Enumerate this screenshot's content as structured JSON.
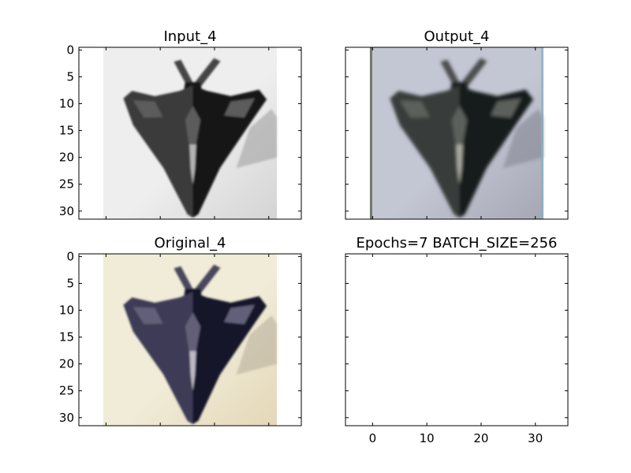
{
  "figure": {
    "background": "#ffffff",
    "panels": [
      {
        "title": "Input_4",
        "kind": "image",
        "colormap": "grayscale",
        "show_y_ticks": true,
        "show_x_ticks": false
      },
      {
        "title": "Output_4",
        "kind": "image",
        "colormap": "desaturated-color-blue-tint",
        "show_y_ticks": false,
        "show_x_ticks": false
      },
      {
        "title": "Original_4",
        "kind": "image",
        "colormap": "color",
        "show_y_ticks": true,
        "show_x_ticks": false
      },
      {
        "title": "Epochs=7 BATCH_SIZE=256",
        "kind": "empty",
        "show_y_ticks": false,
        "show_x_ticks": true
      }
    ]
  },
  "chart_data": [
    {
      "type": "heatmap",
      "title": "Input_4",
      "xlim": [
        -5,
        36
      ],
      "ylim": [
        31.5,
        -0.5
      ],
      "image_extent": [
        -0.5,
        31.5,
        31.5,
        -0.5
      ],
      "y_ticks": [
        "0",
        "5",
        "10",
        "15",
        "20",
        "25",
        "30"
      ],
      "x_ticks": [],
      "content": "32x32 grayscale image of a dark stealth aircraft (arrowhead shape) on a light background"
    },
    {
      "type": "heatmap",
      "title": "Output_4",
      "xlim": [
        -5,
        36
      ],
      "ylim": [
        31.5,
        -0.5
      ],
      "image_extent": [
        -0.5,
        31.5,
        31.5,
        -0.5
      ],
      "y_ticks": [],
      "x_ticks": [],
      "content": "32x32 reconstructed color image of the stealth aircraft, blurry with bluish-gray background"
    },
    {
      "type": "heatmap",
      "title": "Original_4",
      "xlim": [
        -5,
        36
      ],
      "ylim": [
        31.5,
        -0.5
      ],
      "image_extent": [
        -0.5,
        31.5,
        31.5,
        -0.5
      ],
      "y_ticks": [
        "0",
        "5",
        "10",
        "15",
        "20",
        "25",
        "30"
      ],
      "x_ticks": [],
      "content": "32x32 original color image of a dark navy stealth aircraft on a cream background"
    },
    {
      "type": "heatmap",
      "title": "Epochs=7 BATCH_SIZE=256",
      "xlim": [
        -5,
        36
      ],
      "ylim": [
        31.5,
        -0.5
      ],
      "y_ticks": [],
      "x_ticks": [
        "0",
        "10",
        "20",
        "30"
      ],
      "content": "empty axes"
    }
  ],
  "palettes": {
    "gray": {
      "bg_light": "#eeeeee",
      "bg_mid": "#d4d4d4",
      "body": "#3a3a3a",
      "body_dark": "#151515",
      "body_light": "#5c5c5c",
      "highlight": "#b4b4b4",
      "tail": "#444444",
      "shadow": "#9a9a9a"
    },
    "output": {
      "bg_light": "#c3c6d3",
      "bg_mid": "#a5a7b4",
      "body": "#383c3a",
      "body_dark": "#181a1b",
      "body_light": "#5c605c",
      "highlight": "#a8ab9e",
      "tail": "#4b4d4d",
      "shadow": "#80838e",
      "edge_left": "#5b6650",
      "edge_right": "#7fb4c4"
    },
    "color": {
      "bg_light": "#f0ecd8",
      "bg_mid": "#e5d7b8",
      "body": "#3e3b55",
      "body_dark": "#17142a",
      "body_light": "#626079",
      "highlight": "#bbb7c4",
      "tail": "#49475d",
      "shadow": "#b4ab97"
    }
  }
}
